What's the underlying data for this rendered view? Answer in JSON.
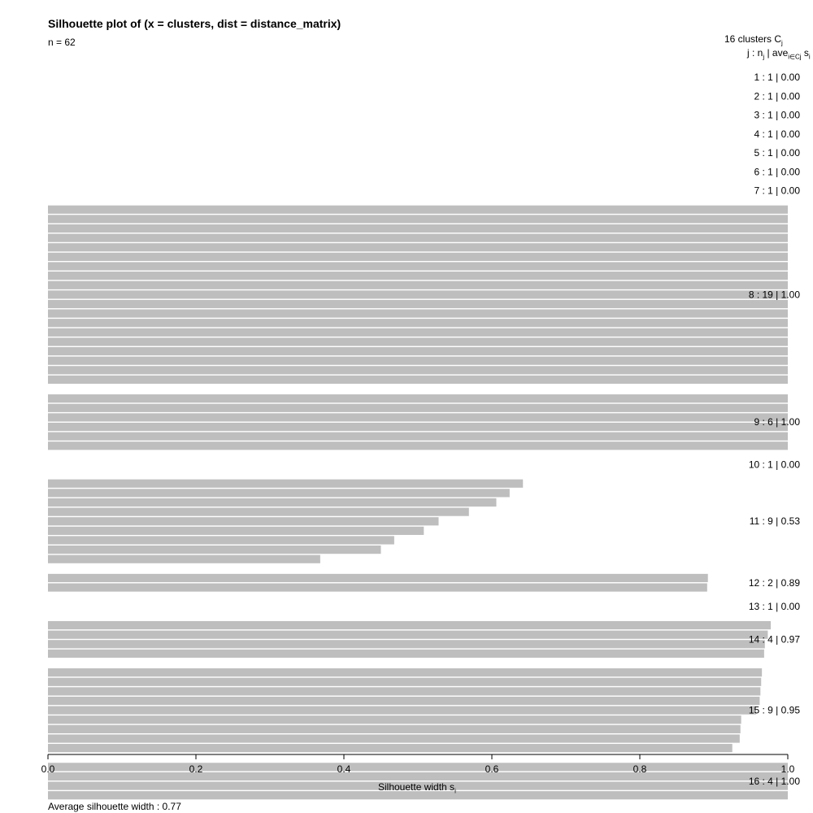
{
  "title": "Silhouette plot of (x = clusters, dist = distance_matrix)",
  "subtitle": "n = 62",
  "legend_header_1": "16  clusters  C",
  "legend_header_1_sub": "j",
  "legend_header_2_a": "j :  n",
  "legend_header_2_sub1": "j",
  "legend_header_2_b": " | ave",
  "legend_header_2_sub2": "i∈Cj",
  "legend_header_2_c": "  s",
  "legend_header_2_sub3": "i",
  "x_label": "Silhouette width s",
  "x_label_sub": "i",
  "average_text": "Average silhouette width :  0.77",
  "colors": {
    "bar": "#bebebe",
    "axis": "#000000",
    "background": "#ffffff"
  },
  "chart_data": {
    "type": "bar",
    "orientation": "horizontal",
    "xlim": [
      0,
      1
    ],
    "x_ticks": [
      "0.0",
      "0.2",
      "0.4",
      "0.6",
      "0.8",
      "1.0"
    ],
    "x_tick_values": [
      0,
      0.2,
      0.4,
      0.6,
      0.8,
      1.0
    ],
    "clusters": [
      {
        "label": "1 :  1  |  0.00",
        "values": [
          0.0
        ]
      },
      {
        "label": "2 :  1  |  0.00",
        "values": [
          0.0
        ]
      },
      {
        "label": "3 :  1  |  0.00",
        "values": [
          0.0
        ]
      },
      {
        "label": "4 :  1  |  0.00",
        "values": [
          0.0
        ]
      },
      {
        "label": "5 :  1  |  0.00",
        "values": [
          0.0
        ]
      },
      {
        "label": "6 :  1  |  0.00",
        "values": [
          0.0
        ]
      },
      {
        "label": "7 :  1  |  0.00",
        "values": [
          0.0
        ]
      },
      {
        "label": "8 :  19  |  1.00",
        "values": [
          1,
          1,
          1,
          1,
          1,
          1,
          1,
          1,
          1,
          1,
          1,
          1,
          1,
          1,
          1,
          1,
          1,
          1,
          1
        ]
      },
      {
        "label": "9 :  6  |  1.00",
        "values": [
          1,
          1,
          1,
          1,
          1,
          1
        ]
      },
      {
        "label": "10 :  1  |  0.00",
        "values": [
          0.0
        ]
      },
      {
        "label": "11 :  9  |  0.53",
        "values": [
          0.642,
          0.624,
          0.606,
          0.569,
          0.528,
          0.508,
          0.468,
          0.45,
          0.368
        ]
      },
      {
        "label": "12 :  2  |  0.89",
        "values": [
          0.892,
          0.891
        ]
      },
      {
        "label": "13 :  1  |  0.00",
        "values": [
          0.0
        ]
      },
      {
        "label": "14 :  4  |  0.97",
        "values": [
          0.977,
          0.973,
          0.969,
          0.968
        ]
      },
      {
        "label": "15 :  9  |  0.95",
        "values": [
          0.965,
          0.964,
          0.963,
          0.962,
          0.957,
          0.937,
          0.936,
          0.935,
          0.925
        ]
      },
      {
        "label": "16 :  4  |  1.00",
        "values": [
          1,
          1,
          1,
          1
        ]
      }
    ]
  }
}
